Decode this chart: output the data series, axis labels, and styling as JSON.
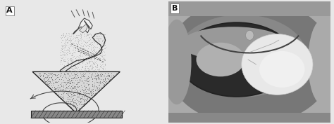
{
  "panel_A_label": "A",
  "panel_B_label": "B",
  "label_fontsize": 8,
  "label_fontweight": "bold",
  "background_color": "#e8e8e8",
  "fig_width": 4.74,
  "fig_height": 1.77,
  "dpi": 100,
  "left_bg": "#ffffff",
  "right_bg": "#aaaaaa"
}
